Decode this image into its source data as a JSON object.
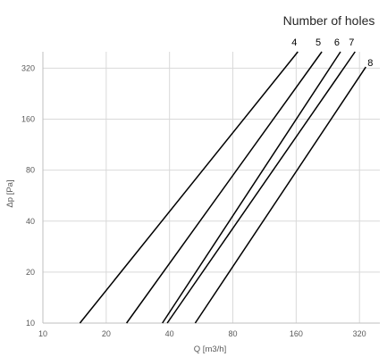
{
  "chart_data": {
    "type": "line",
    "legend_title": "Number of holes",
    "xlabel": "Q [m3/h]",
    "ylabel": "Δp [Pa]",
    "x_scale": "log",
    "y_scale": "log",
    "xlim": [
      10,
      400
    ],
    "ylim": [
      10,
      400
    ],
    "x_ticks": [
      10,
      20,
      40,
      80,
      160,
      320
    ],
    "y_ticks": [
      10,
      20,
      40,
      80,
      160,
      320
    ],
    "grid": true,
    "series": [
      {
        "name": "4",
        "x": [
          15,
          163
        ],
        "y": [
          10,
          400
        ]
      },
      {
        "name": "5",
        "x": [
          25,
          212
        ],
        "y": [
          10,
          400
        ]
      },
      {
        "name": "6",
        "x": [
          37,
          260
        ],
        "y": [
          10,
          400
        ]
      },
      {
        "name": "7",
        "x": [
          39,
          305
        ],
        "y": [
          10,
          400
        ]
      },
      {
        "name": "8",
        "x": [
          53,
          343
        ],
        "y": [
          10,
          325
        ]
      }
    ]
  }
}
